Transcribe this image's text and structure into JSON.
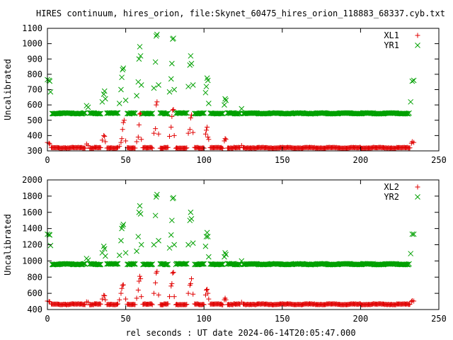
{
  "title": "HIRES continuum, hires_orion, file:Skynet_60475_hires_orion_118883_68337.cyb.txt",
  "xlabel": "rel seconds : UT date 2024-06-14T20:05:47.000",
  "colors": {
    "red": "#e00000",
    "green": "#00a000",
    "frame": "#000000",
    "background": "#ffffff"
  },
  "chart_data": [
    {
      "type": "scatter",
      "ylabel": "Uncalibrated",
      "xlim": [
        0,
        250
      ],
      "ylim": [
        300,
        1100
      ],
      "xticks": [
        0,
        50,
        100,
        150,
        200,
        250
      ],
      "yticks": [
        300,
        400,
        500,
        600,
        700,
        800,
        900,
        1000,
        1100
      ],
      "legend_position": "top-right",
      "series": [
        {
          "name": "XL1",
          "marker": "plus",
          "color": "#e00000",
          "baseline": 320,
          "points": [
            [
              0,
              355
            ],
            [
              1,
              350
            ],
            [
              1.5,
              345
            ],
            [
              25,
              345
            ],
            [
              26,
              335
            ],
            [
              35,
              370
            ],
            [
              36,
              400
            ],
            [
              36.5,
              395
            ],
            [
              37,
              360
            ],
            [
              46,
              330
            ],
            [
              47,
              355
            ],
            [
              47.5,
              380
            ],
            [
              48,
              440
            ],
            [
              48.5,
              485
            ],
            [
              49,
              500
            ],
            [
              50,
              365
            ],
            [
              57,
              360
            ],
            [
              58,
              390
            ],
            [
              58.5,
              470
            ],
            [
              59,
              540
            ],
            [
              59.5,
              545
            ],
            [
              60,
              375
            ],
            [
              68,
              415
            ],
            [
              69,
              445
            ],
            [
              69.5,
              600
            ],
            [
              70,
              620
            ],
            [
              71,
              410
            ],
            [
              78,
              395
            ],
            [
              79,
              455
            ],
            [
              79.5,
              525
            ],
            [
              80,
              565
            ],
            [
              80.5,
              570
            ],
            [
              81,
              400
            ],
            [
              90,
              415
            ],
            [
              91,
              440
            ],
            [
              91.5,
              515
            ],
            [
              92,
              535
            ],
            [
              93,
              420
            ],
            [
              101,
              410
            ],
            [
              101.5,
              435
            ],
            [
              102,
              455
            ],
            [
              102.5,
              390
            ],
            [
              103,
              375
            ],
            [
              113,
              365
            ],
            [
              113.5,
              380
            ],
            [
              114,
              375
            ],
            [
              124,
              335
            ],
            [
              232.5,
              350
            ],
            [
              233,
              360
            ],
            [
              234,
              355
            ]
          ]
        },
        {
          "name": "YR1",
          "marker": "cross",
          "color": "#00a000",
          "baseline": 545,
          "points": [
            [
              0,
              765
            ],
            [
              1,
              760
            ],
            [
              1.5,
              755
            ],
            [
              2,
              685
            ],
            [
              25,
              595
            ],
            [
              26,
              585
            ],
            [
              35,
              620
            ],
            [
              36,
              670
            ],
            [
              36.5,
              690
            ],
            [
              37,
              640
            ],
            [
              46,
              610
            ],
            [
              47,
              700
            ],
            [
              47.5,
              780
            ],
            [
              48,
              830
            ],
            [
              48.5,
              840
            ],
            [
              50,
              630
            ],
            [
              57,
              660
            ],
            [
              58,
              750
            ],
            [
              58.5,
              900
            ],
            [
              59,
              980
            ],
            [
              59.5,
              920
            ],
            [
              60,
              730
            ],
            [
              68,
              710
            ],
            [
              69,
              880
            ],
            [
              69.5,
              1050
            ],
            [
              70,
              1060
            ],
            [
              71,
              730
            ],
            [
              78,
              685
            ],
            [
              79,
              770
            ],
            [
              79.5,
              870
            ],
            [
              80,
              1030
            ],
            [
              80.5,
              1035
            ],
            [
              81,
              700
            ],
            [
              90,
              720
            ],
            [
              91,
              860
            ],
            [
              91.5,
              920
            ],
            [
              92,
              870
            ],
            [
              93,
              730
            ],
            [
              101,
              680
            ],
            [
              101.5,
              720
            ],
            [
              102,
              775
            ],
            [
              102.5,
              760
            ],
            [
              103,
              610
            ],
            [
              113,
              600
            ],
            [
              113.5,
              640
            ],
            [
              114,
              630
            ],
            [
              124,
              575
            ],
            [
              232,
              620
            ],
            [
              233,
              755
            ],
            [
              234,
              760
            ]
          ]
        }
      ]
    },
    {
      "type": "scatter",
      "ylabel": "Uncalibrated",
      "xlim": [
        0,
        250
      ],
      "ylim": [
        400,
        2000
      ],
      "xticks": [
        0,
        50,
        100,
        150,
        200,
        250
      ],
      "yticks": [
        400,
        600,
        800,
        1000,
        1200,
        1400,
        1600,
        1800,
        2000
      ],
      "legend_position": "top-right",
      "series": [
        {
          "name": "XL2",
          "marker": "plus",
          "color": "#e00000",
          "baseline": 465,
          "points": [
            [
              0,
              505
            ],
            [
              1,
              500
            ],
            [
              1.5,
              495
            ],
            [
              25,
              495
            ],
            [
              26,
              490
            ],
            [
              35,
              530
            ],
            [
              36,
              575
            ],
            [
              36.5,
              570
            ],
            [
              37,
              520
            ],
            [
              46,
              520
            ],
            [
              47,
              600
            ],
            [
              47.5,
              660
            ],
            [
              48,
              700
            ],
            [
              48.5,
              705
            ],
            [
              50,
              530
            ],
            [
              57,
              540
            ],
            [
              58,
              640
            ],
            [
              58.5,
              750
            ],
            [
              59,
              810
            ],
            [
              59.5,
              780
            ],
            [
              60,
              560
            ],
            [
              68,
              600
            ],
            [
              69,
              730
            ],
            [
              69.5,
              850
            ],
            [
              70,
              870
            ],
            [
              71,
              580
            ],
            [
              78,
              560
            ],
            [
              79,
              690
            ],
            [
              79.5,
              720
            ],
            [
              80,
              850
            ],
            [
              80.5,
              860
            ],
            [
              81,
              560
            ],
            [
              90,
              600
            ],
            [
              91,
              700
            ],
            [
              91.5,
              720
            ],
            [
              92,
              780
            ],
            [
              93,
              590
            ],
            [
              101,
              580
            ],
            [
              101.5,
              640
            ],
            [
              102,
              650
            ],
            [
              102.5,
              600
            ],
            [
              103,
              530
            ],
            [
              113,
              520
            ],
            [
              113.5,
              540
            ],
            [
              114,
              520
            ],
            [
              124,
              490
            ],
            [
              232.5,
              500
            ],
            [
              233,
              510
            ],
            [
              234,
              505
            ]
          ]
        },
        {
          "name": "YR2",
          "marker": "cross",
          "color": "#00a000",
          "baseline": 960,
          "points": [
            [
              0,
              1330
            ],
            [
              1,
              1325
            ],
            [
              1.5,
              1320
            ],
            [
              2,
              1190
            ],
            [
              25,
              1030
            ],
            [
              26,
              1010
            ],
            [
              35,
              1100
            ],
            [
              36,
              1180
            ],
            [
              36.5,
              1150
            ],
            [
              37,
              1060
            ],
            [
              46,
              1070
            ],
            [
              47,
              1250
            ],
            [
              47.5,
              1400
            ],
            [
              48,
              1430
            ],
            [
              48.5,
              1450
            ],
            [
              50,
              1100
            ],
            [
              57,
              1120
            ],
            [
              58,
              1300
            ],
            [
              58.5,
              1600
            ],
            [
              59,
              1680
            ],
            [
              59.5,
              1580
            ],
            [
              60,
              1200
            ],
            [
              68,
              1200
            ],
            [
              69,
              1560
            ],
            [
              69.5,
              1790
            ],
            [
              70,
              1820
            ],
            [
              71,
              1250
            ],
            [
              78,
              1160
            ],
            [
              79,
              1320
            ],
            [
              79.5,
              1500
            ],
            [
              80,
              1770
            ],
            [
              80.5,
              1780
            ],
            [
              81,
              1200
            ],
            [
              90,
              1200
            ],
            [
              91,
              1500
            ],
            [
              91.5,
              1600
            ],
            [
              92,
              1520
            ],
            [
              93,
              1220
            ],
            [
              101,
              1180
            ],
            [
              101.5,
              1300
            ],
            [
              102,
              1350
            ],
            [
              102.5,
              1300
            ],
            [
              103,
              1050
            ],
            [
              113,
              1050
            ],
            [
              113.5,
              1100
            ],
            [
              114,
              1080
            ],
            [
              124,
              1000
            ],
            [
              232,
              1090
            ],
            [
              233,
              1330
            ],
            [
              234,
              1330
            ]
          ]
        }
      ]
    }
  ]
}
